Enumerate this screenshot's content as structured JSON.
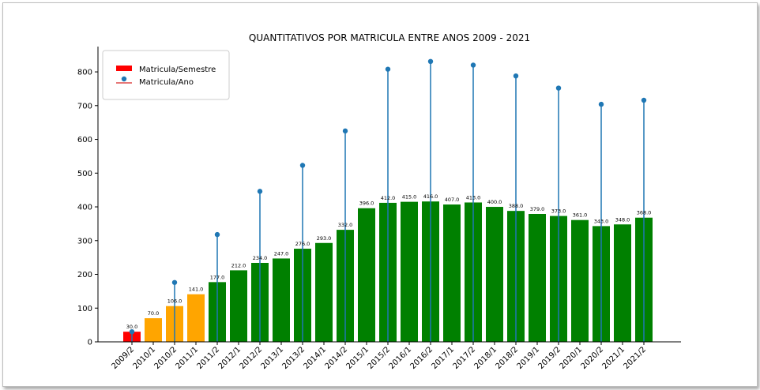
{
  "chart_data": {
    "type": "bar",
    "title": "QUANTITATIVOS POR MATRICULA ENTRE ANOS 2009 - 2021",
    "xlabel": "",
    "ylabel": "",
    "ylim": [
      0,
      875
    ],
    "yticks": [
      0,
      100,
      200,
      300,
      400,
      500,
      600,
      700,
      800
    ],
    "legend_position": "top-left",
    "categories": [
      "2009/2",
      "2010/1",
      "2010/2",
      "2011/1",
      "2011/2",
      "2012/1",
      "2012/2",
      "2013/1",
      "2013/2",
      "2014/1",
      "2014/2",
      "2015/1",
      "2015/2",
      "2016/1",
      "2016/2",
      "2017/1",
      "2017/2",
      "2018/1",
      "2018/2",
      "2019/1",
      "2019/2",
      "2020/1",
      "2020/2",
      "2021/1",
      "2021/2"
    ],
    "series": [
      {
        "name": "Matricula/Semestre",
        "type": "bar",
        "values": [
          30,
          70,
          106,
          141,
          177,
          212,
          234,
          247,
          276,
          293,
          332,
          396,
          412,
          415,
          416,
          407,
          413,
          400,
          388,
          379,
          373,
          361,
          343,
          348,
          368
        ],
        "data_labels": [
          "30.0",
          "70.0",
          "106.0",
          "141.0",
          "177.0",
          "212.0",
          "234.0",
          "247.0",
          "276.0",
          "293.0",
          "332.0",
          "396.0",
          "412.0",
          "415.0",
          "416.0",
          "407.0",
          "413.0",
          "400.0",
          "388.0",
          "379.0",
          "373.0",
          "361.0",
          "343.0",
          "348.0",
          "368.0"
        ],
        "colors": [
          "#ff0000",
          "#ffa500",
          "#ffa500",
          "#ffa500",
          "#008000",
          "#008000",
          "#008000",
          "#008000",
          "#008000",
          "#008000",
          "#008000",
          "#008000",
          "#008000",
          "#008000",
          "#008000",
          "#008000",
          "#008000",
          "#008000",
          "#008000",
          "#008000",
          "#008000",
          "#008000",
          "#008000",
          "#008000",
          "#008000"
        ]
      },
      {
        "name": "Matricula/Ano",
        "type": "stem",
        "color": "#1f77b4",
        "points": [
          {
            "x": "2009/2",
            "y": 30
          },
          {
            "x": "2010/2",
            "y": 176
          },
          {
            "x": "2011/2",
            "y": 318
          },
          {
            "x": "2012/2",
            "y": 446
          },
          {
            "x": "2013/2",
            "y": 523
          },
          {
            "x": "2014/2",
            "y": 625
          },
          {
            "x": "2015/2",
            "y": 808
          },
          {
            "x": "2016/2",
            "y": 831
          },
          {
            "x": "2017/2",
            "y": 820
          },
          {
            "x": "2018/2",
            "y": 788
          },
          {
            "x": "2019/2",
            "y": 752
          },
          {
            "x": "2020/2",
            "y": 704
          },
          {
            "x": "2021/2",
            "y": 716
          }
        ]
      }
    ]
  }
}
